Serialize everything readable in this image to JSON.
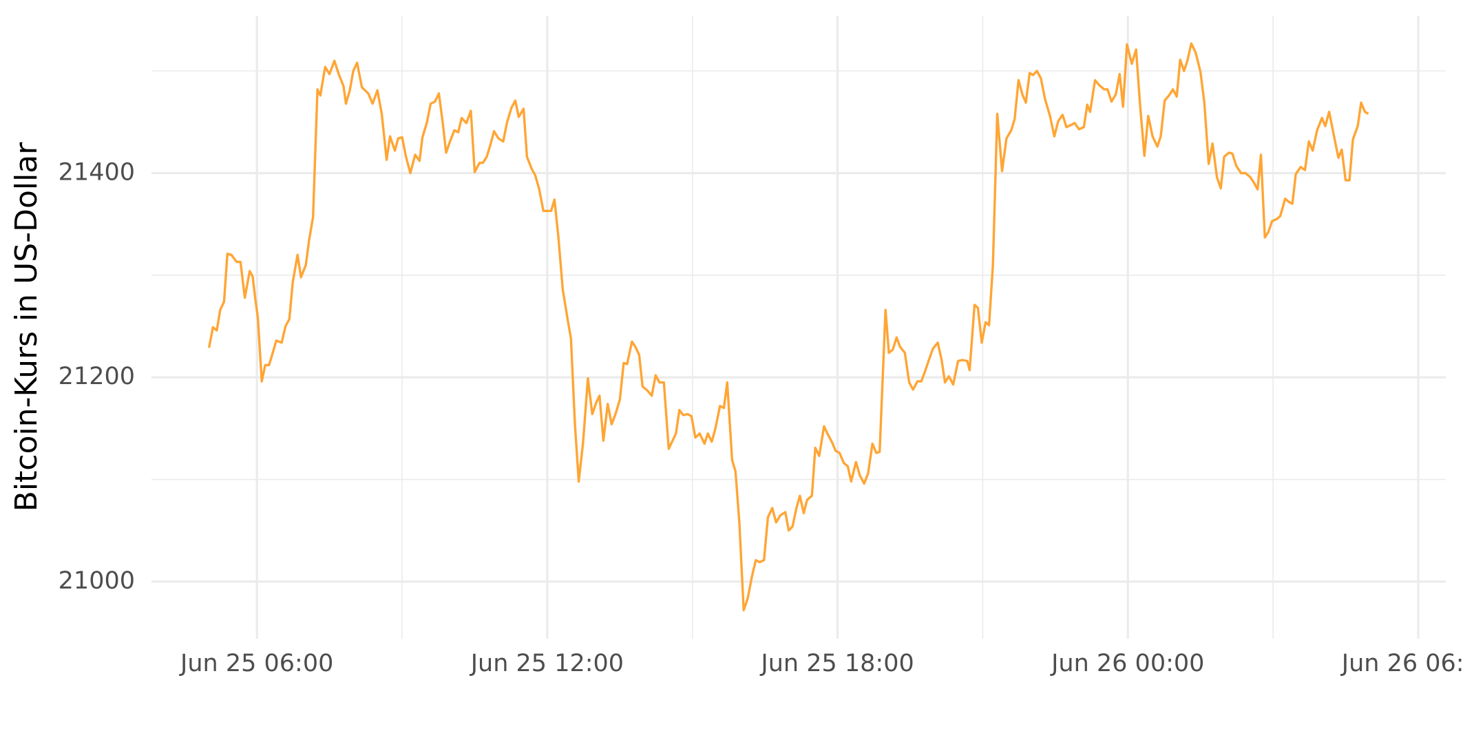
{
  "chart_data": {
    "type": "line",
    "ylabel": "Bitcoin-Kurs in US-Dollar",
    "color": "#ffa534",
    "grid": true,
    "xlim": [
      3.82,
      30.57
    ],
    "ylim": [
      20944,
      21554
    ],
    "xticks": [
      {
        "value": 6,
        "label": "Jun 25 06:00"
      },
      {
        "value": 12,
        "label": "Jun 25 12:00"
      },
      {
        "value": 18,
        "label": "Jun 25 18:00"
      },
      {
        "value": 24,
        "label": "Jun 26 00:00"
      },
      {
        "value": 30,
        "label": "Jun 26 06:00"
      }
    ],
    "xminor": [
      9,
      15,
      21,
      27
    ],
    "yticks": [
      21000,
      21200,
      21400
    ],
    "yminor": [
      21100,
      21300,
      21500
    ],
    "x": [
      5.01,
      5.09,
      5.17,
      5.24,
      5.32,
      5.39,
      5.47,
      5.58,
      5.66,
      5.75,
      5.85,
      5.91,
      5.96,
      6.02,
      6.1,
      6.17,
      6.25,
      6.32,
      6.4,
      6.51,
      6.59,
      6.67,
      6.74,
      6.84,
      6.91,
      7.01,
      7.08,
      7.16,
      7.25,
      7.31,
      7.41,
      7.5,
      7.6,
      7.69,
      7.79,
      7.84,
      7.92,
      7.99,
      8.07,
      8.17,
      8.3,
      8.39,
      8.49,
      8.58,
      8.68,
      8.75,
      8.85,
      8.92,
      9.0,
      9.08,
      9.17,
      9.27,
      9.36,
      9.42,
      9.51,
      9.59,
      9.68,
      9.76,
      9.84,
      9.91,
      9.99,
      10.08,
      10.16,
      10.23,
      10.33,
      10.42,
      10.5,
      10.6,
      10.67,
      10.75,
      10.82,
      10.9,
      10.99,
      11.09,
      11.17,
      11.26,
      11.34,
      11.41,
      11.51,
      11.58,
      11.68,
      11.75,
      11.83,
      11.92,
      12.0,
      12.08,
      12.15,
      12.23,
      12.32,
      12.42,
      12.49,
      12.57,
      12.65,
      12.74,
      12.84,
      12.93,
      13.01,
      13.08,
      13.16,
      13.25,
      13.33,
      13.41,
      13.5,
      13.58,
      13.65,
      13.75,
      13.82,
      13.9,
      13.97,
      14.07,
      14.16,
      14.24,
      14.32,
      14.41,
      14.51,
      14.58,
      14.66,
      14.73,
      14.81,
      14.9,
      14.98,
      15.06,
      15.15,
      15.25,
      15.32,
      15.4,
      15.47,
      15.57,
      15.65,
      15.72,
      15.82,
      15.89,
      15.97,
      16.06,
      16.14,
      16.23,
      16.31,
      16.39,
      16.48,
      16.56,
      16.65,
      16.73,
      16.82,
      16.92,
      16.99,
      17.07,
      17.15,
      17.22,
      17.3,
      17.37,
      17.47,
      17.54,
      17.62,
      17.72,
      17.79,
      17.89,
      17.96,
      18.04,
      18.13,
      18.21,
      18.28,
      18.38,
      18.46,
      18.55,
      18.63,
      18.72,
      18.8,
      18.87,
      18.99,
      19.06,
      19.14,
      19.22,
      19.29,
      19.39,
      19.48,
      19.56,
      19.65,
      19.73,
      19.8,
      19.88,
      19.97,
      20.07,
      20.15,
      20.22,
      20.3,
      20.39,
      20.49,
      20.58,
      20.68,
      20.73,
      20.83,
      20.9,
      20.98,
      21.06,
      21.13,
      21.21,
      21.3,
      21.4,
      21.49,
      21.59,
      21.66,
      21.74,
      21.82,
      21.89,
      21.97,
      22.04,
      22.12,
      22.2,
      22.29,
      22.39,
      22.48,
      22.56,
      22.65,
      22.73,
      22.82,
      22.9,
      22.99,
      23.09,
      23.16,
      23.22,
      23.32,
      23.41,
      23.51,
      23.58,
      23.66,
      23.75,
      23.83,
      23.9,
      23.98,
      24.08,
      24.17,
      24.25,
      24.34,
      24.42,
      24.51,
      24.61,
      24.68,
      24.76,
      24.85,
      24.93,
      25.01,
      25.08,
      25.16,
      25.23,
      25.31,
      25.4,
      25.5,
      25.58,
      25.67,
      25.75,
      25.84,
      25.92,
      25.99,
      26.09,
      26.16,
      26.24,
      26.34,
      26.43,
      26.53,
      26.6,
      26.68,
      26.75,
      26.83,
      26.9,
      26.98,
      27.08,
      27.15,
      27.25,
      27.32,
      27.4,
      27.47,
      27.57,
      27.66,
      27.74,
      27.82,
      27.91,
      28.01,
      28.08,
      28.16,
      28.24,
      28.35,
      28.42,
      28.5,
      28.58,
      28.65,
      28.75,
      28.82,
      28.9,
      28.97
    ],
    "values": [
      21229,
      21249,
      21246,
      21266,
      21274,
      21321,
      21320,
      21313,
      21313,
      21278,
      21304,
      21299,
      21279,
      21258,
      21196,
      21212,
      21212,
      21223,
      21236,
      21234,
      21250,
      21257,
      21293,
      21320,
      21298,
      21310,
      21335,
      21357,
      21482,
      21476,
      21504,
      21497,
      21510,
      21497,
      21485,
      21468,
      21481,
      21500,
      21508,
      21484,
      21478,
      21468,
      21481,
      21458,
      21413,
      21436,
      21422,
      21434,
      21435,
      21416,
      21400,
      21418,
      21412,
      21435,
      21449,
      21468,
      21470,
      21478,
      21449,
      21420,
      21431,
      21442,
      21440,
      21454,
      21449,
      21461,
      21401,
      21410,
      21410,
      21416,
      21427,
      21441,
      21434,
      21431,
      21450,
      21464,
      21471,
      21455,
      21463,
      21416,
      21404,
      21398,
      21385,
      21363,
      21363,
      21363,
      21374,
      21337,
      21286,
      21257,
      21238,
      21155,
      21098,
      21136,
      21199,
      21164,
      21175,
      21182,
      21138,
      21174,
      21154,
      21164,
      21178,
      21214,
      21213,
      21235,
      21230,
      21222,
      21191,
      21187,
      21182,
      21202,
      21195,
      21195,
      21130,
      21137,
      21145,
      21168,
      21163,
      21164,
      21162,
      21141,
      21145,
      21135,
      21145,
      21137,
      21149,
      21172,
      21170,
      21195,
      21119,
      21108,
      21058,
      20972,
      20983,
      21005,
      21021,
      21019,
      21021,
      21063,
      21072,
      21058,
      21065,
      21068,
      21050,
      21054,
      21072,
      21084,
      21067,
      21080,
      21084,
      21131,
      21123,
      21152,
      21145,
      21136,
      21128,
      21126,
      21116,
      21113,
      21098,
      21117,
      21104,
      21096,
      21106,
      21135,
      21126,
      21127,
      21266,
      21224,
      21227,
      21239,
      21230,
      21224,
      21195,
      21188,
      21196,
      21196,
      21205,
      21216,
      21228,
      21234,
      21217,
      21195,
      21201,
      21193,
      21216,
      21217,
      21216,
      21207,
      21271,
      21268,
      21234,
      21254,
      21251,
      21310,
      21458,
      21402,
      21434,
      21442,
      21453,
      21491,
      21477,
      21469,
      21498,
      21496,
      21500,
      21493,
      21472,
      21456,
      21436,
      21451,
      21457,
      21445,
      21447,
      21449,
      21443,
      21445,
      21467,
      21460,
      21491,
      21486,
      21482,
      21482,
      21470,
      21477,
      21497,
      21465,
      21526,
      21507,
      21521,
      21468,
      21417,
      21456,
      21436,
      21426,
      21436,
      21471,
      21476,
      21482,
      21475,
      21511,
      21500,
      21510,
      21527,
      21518,
      21499,
      21469,
      21409,
      21429,
      21396,
      21385,
      21416,
      21420,
      21419,
      21407,
      21400,
      21400,
      21396,
      21391,
      21384,
      21418,
      21337,
      21342,
      21353,
      21355,
      21358,
      21375,
      21372,
      21370,
      21399,
      21406,
      21403,
      21431,
      21422,
      21442,
      21454,
      21446,
      21460,
      21441,
      21415,
      21423,
      21393,
      21393,
      21433,
      21446,
      21469,
      21460,
      21458
    ]
  }
}
